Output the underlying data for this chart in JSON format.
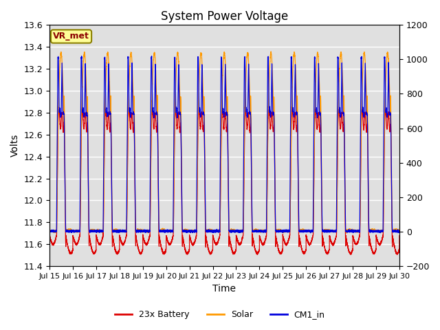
{
  "title": "System Power Voltage",
  "xlabel": "Time",
  "ylabel": "Volts",
  "ylim_left": [
    11.4,
    13.6
  ],
  "ylim_right": [
    -200,
    1200
  ],
  "yticks_left": [
    11.4,
    11.6,
    11.8,
    12.0,
    12.2,
    12.4,
    12.6,
    12.8,
    13.0,
    13.2,
    13.4,
    13.6
  ],
  "yticks_right": [
    -200,
    0,
    200,
    400,
    600,
    800,
    1000,
    1200
  ],
  "num_cycles": 15,
  "annotation_text": "VR_met",
  "line_colors": {
    "battery": "#dd0000",
    "solar": "#ff9900",
    "cm1": "#0000dd"
  },
  "line_labels": {
    "battery": "23x Battery",
    "solar": "Solar",
    "cm1": "CM1_in"
  },
  "background_color": "#e0e0e0",
  "grid_color": "white",
  "title_fontsize": 12,
  "label_fontsize": 10,
  "tick_fontsize": 9
}
